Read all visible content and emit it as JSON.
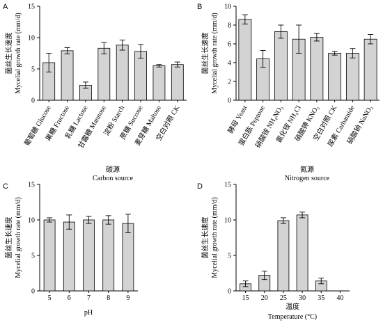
{
  "chart_data": [
    {
      "panel": "A",
      "type": "bar",
      "categories": [
        "葡萄糖 Glucose",
        "果糖 Fructose",
        "乳糖 Lactose",
        "甘露糖 Mannose",
        "淀粉 Starch",
        "蔗糖 Sucrose",
        "麦芽糖 Maltose",
        "空白对照 CK"
      ],
      "values": [
        6.0,
        7.9,
        2.4,
        8.3,
        8.8,
        7.8,
        5.5,
        5.7
      ],
      "errors": [
        1.5,
        0.5,
        0.5,
        0.9,
        0.8,
        1.1,
        0.2,
        0.4
      ],
      "ylabel_cn": "菌丝生长速度",
      "ylabel": "Mycelial growth rate (mm/d)",
      "xlabel_cn": "碳源",
      "xlabel": "Carbon source",
      "ylim": [
        0,
        15
      ],
      "yticks": [
        0,
        5,
        10,
        15
      ]
    },
    {
      "panel": "B",
      "type": "bar",
      "categories": [
        "酵母 Yeast",
        "蛋白胨 Peptone",
        "硝酸铵 NH₄NO₃",
        "氯化铵 NH₄Cl",
        "硝酸钾 KNO₃",
        "空白对照 CK",
        "尿素 Carbamide",
        "硝酸钠 NaNO₃"
      ],
      "values": [
        8.6,
        4.4,
        7.3,
        6.5,
        6.7,
        5.0,
        5.0,
        6.5
      ],
      "errors": [
        0.5,
        0.9,
        0.7,
        1.5,
        0.4,
        0.2,
        0.5,
        0.5
      ],
      "ylabel_cn": "菌丝生长速度",
      "ylabel": "Mycelial growth rate (mm/d)",
      "xlabel_cn": "氮源",
      "xlabel": "Nitrogen source",
      "ylim": [
        0,
        10
      ],
      "yticks": [
        0,
        2,
        4,
        6,
        8,
        10
      ]
    },
    {
      "panel": "C",
      "type": "bar",
      "categories": [
        "5",
        "6",
        "7",
        "8",
        "9"
      ],
      "values": [
        10.0,
        9.7,
        10.0,
        10.0,
        9.5
      ],
      "errors": [
        0.3,
        1.0,
        0.5,
        0.6,
        1.3
      ],
      "ylabel_cn": "菌丝生长速度",
      "ylabel": "Mycelial growth rate (mm/d)",
      "xlabel": "pH",
      "ylim": [
        0,
        15
      ],
      "yticks": [
        0,
        5,
        10,
        15
      ]
    },
    {
      "panel": "D",
      "type": "bar",
      "categories": [
        "15",
        "20",
        "25",
        "30",
        "35",
        "40"
      ],
      "values": [
        1.0,
        2.2,
        9.9,
        10.7,
        1.4,
        0
      ],
      "errors": [
        0.4,
        0.6,
        0.4,
        0.4,
        0.4,
        0
      ],
      "ylabel_cn": "菌丝生长速度",
      "ylabel": "Mycelial growth rate (mm/d)",
      "xlabel_cn": "温度",
      "xlabel": "Temperature (°C)",
      "ylim": [
        0,
        15
      ],
      "yticks": [
        0,
        5,
        10,
        15
      ]
    }
  ]
}
